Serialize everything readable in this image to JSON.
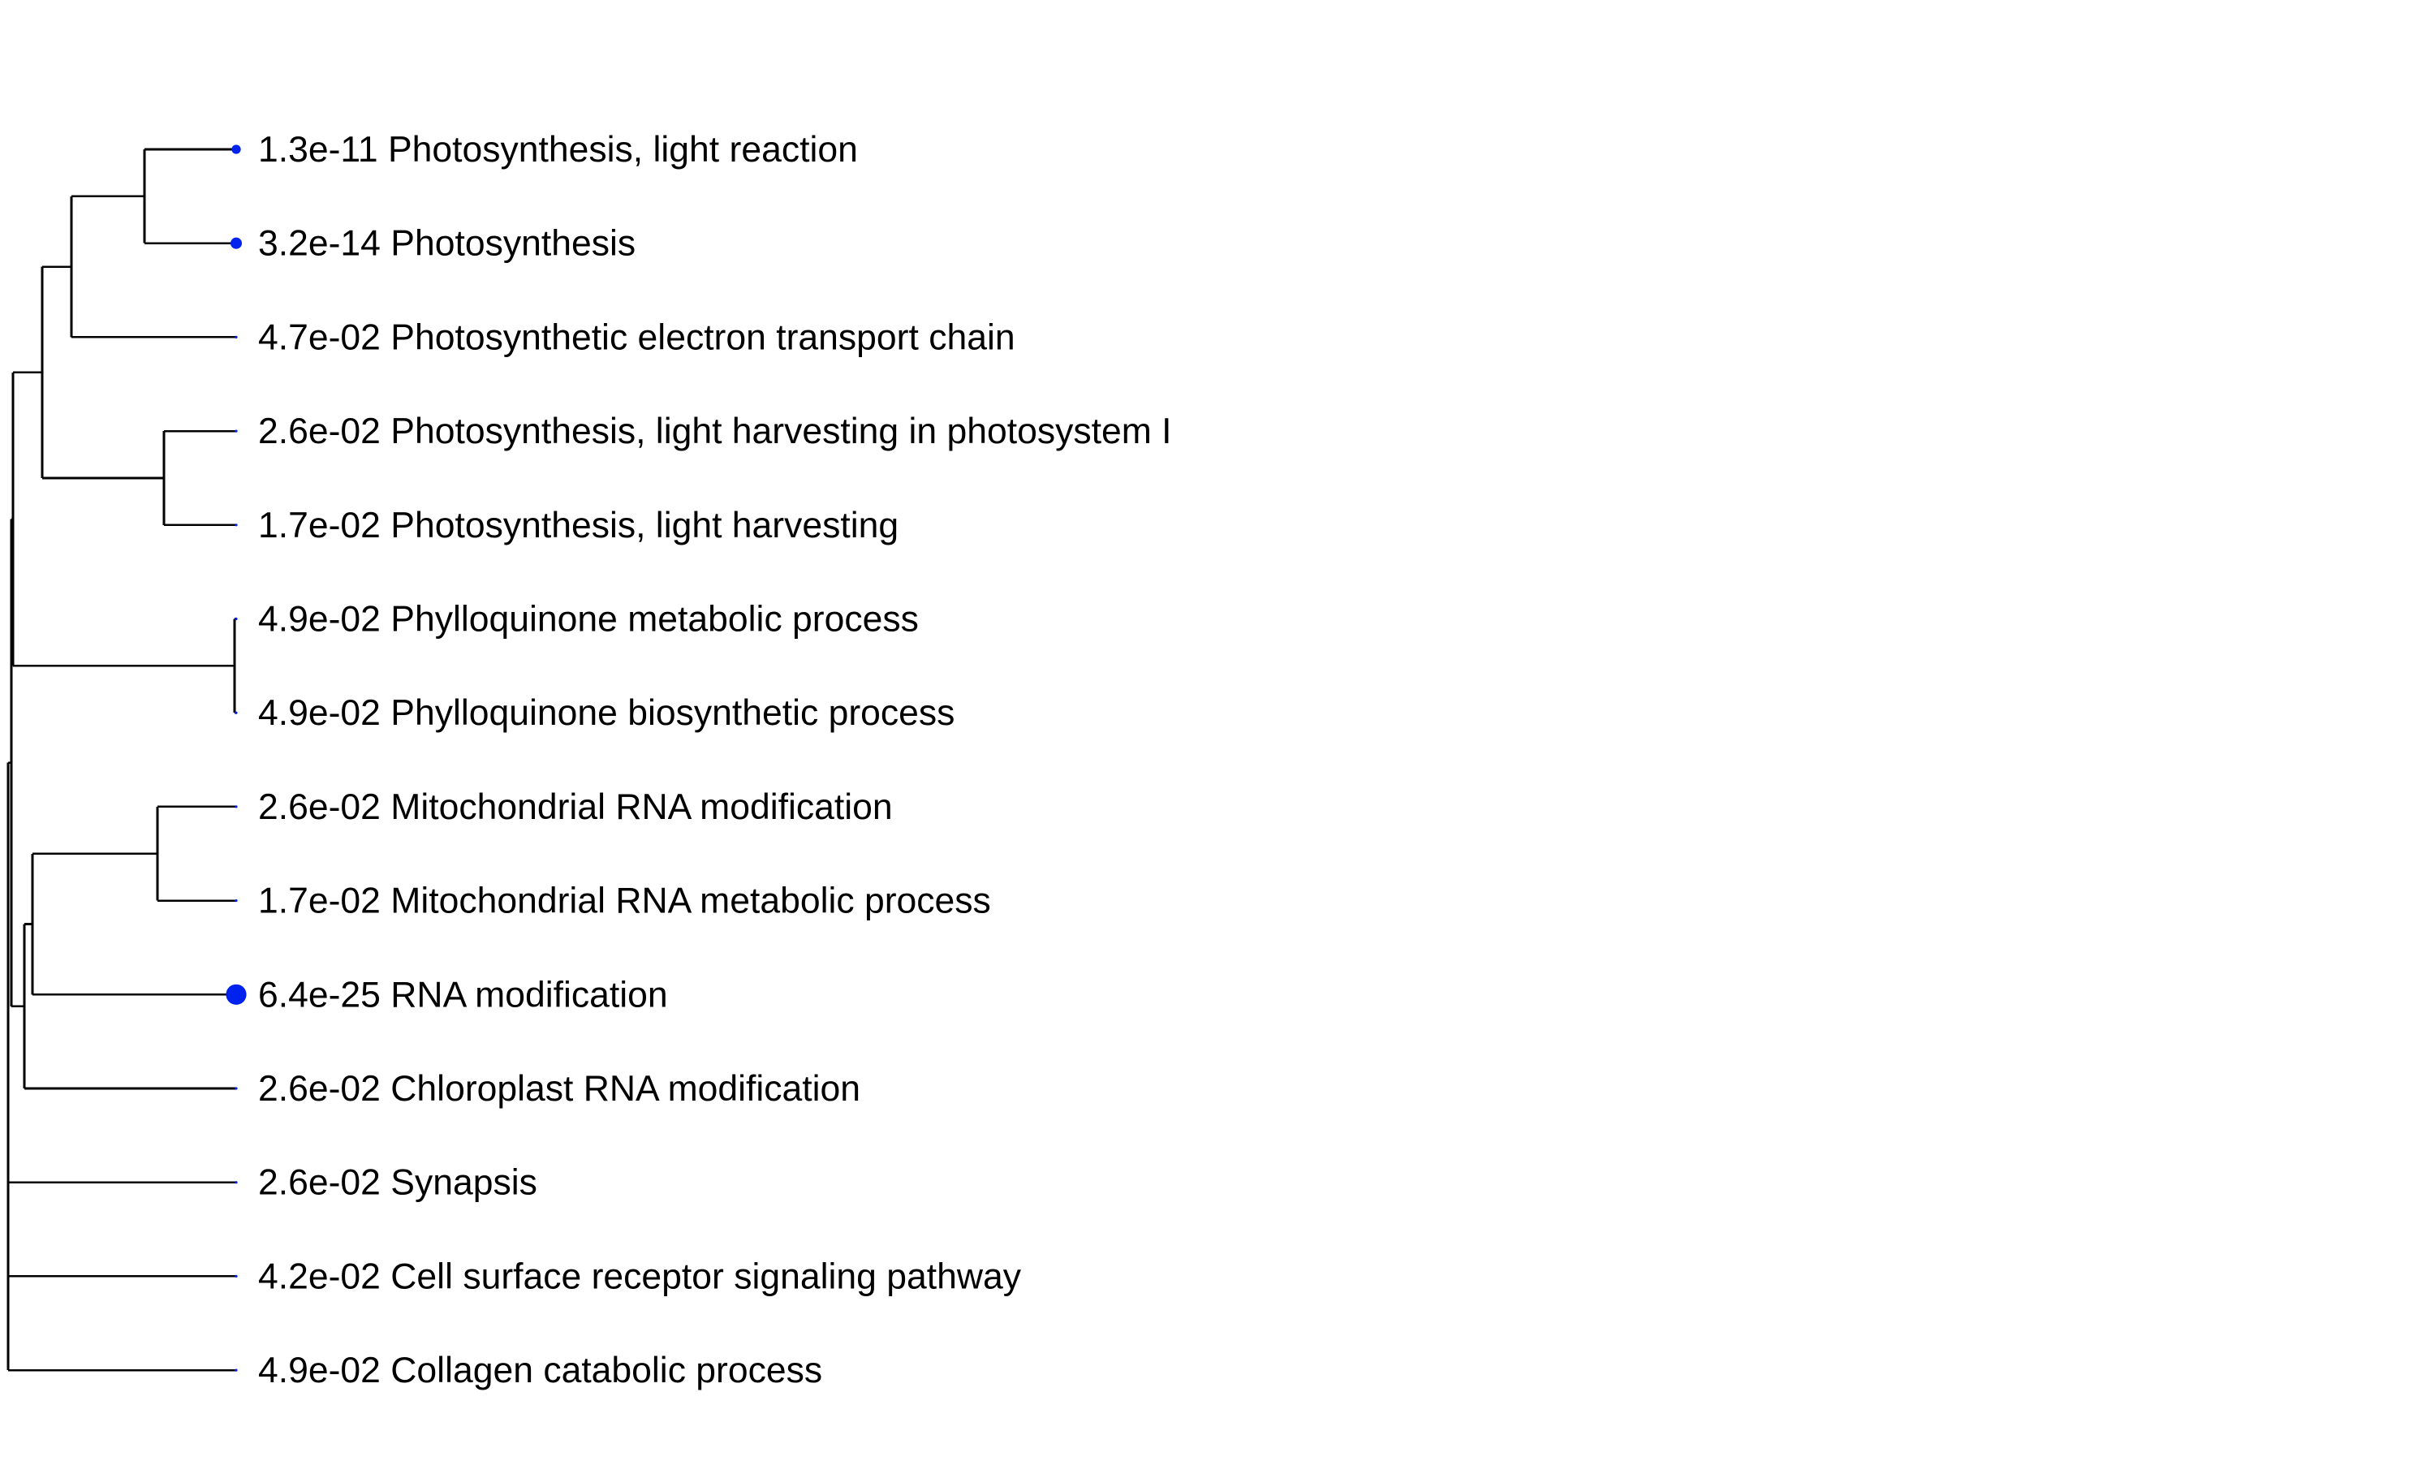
{
  "colors": {
    "branch": "#000000",
    "point": "#0022ee",
    "text": "#000000"
  },
  "tree": {
    "terms": [
      {
        "pvalue": "1.3e-11",
        "name": "Photosynthesis, light reaction"
      },
      {
        "pvalue": "3.2e-14",
        "name": "Photosynthesis"
      },
      {
        "pvalue": "4.7e-02",
        "name": "Photosynthetic electron transport chain"
      },
      {
        "pvalue": "2.6e-02",
        "name": "Photosynthesis, light harvesting in photosystem I"
      },
      {
        "pvalue": "1.7e-02",
        "name": "Photosynthesis, light harvesting"
      },
      {
        "pvalue": "4.9e-02",
        "name": "Phylloquinone metabolic process"
      },
      {
        "pvalue": "4.9e-02",
        "name": "Phylloquinone biosynthetic process"
      },
      {
        "pvalue": "2.6e-02",
        "name": "Mitochondrial RNA modification"
      },
      {
        "pvalue": "1.7e-02",
        "name": "Mitochondrial RNA metabolic process"
      },
      {
        "pvalue": "6.4e-25",
        "name": "RNA modification"
      },
      {
        "pvalue": "2.6e-02",
        "name": "Chloroplast RNA modification"
      },
      {
        "pvalue": "2.6e-02",
        "name": "Synapsis"
      },
      {
        "pvalue": "4.2e-02",
        "name": "Cell surface receptor signaling pathway"
      },
      {
        "pvalue": "4.9e-02",
        "name": "Collagen catabolic process"
      }
    ]
  }
}
